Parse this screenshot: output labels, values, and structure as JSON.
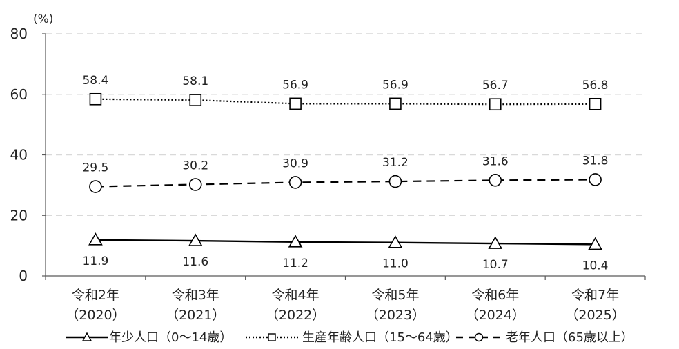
{
  "chart_data": {
    "type": "line",
    "title": "",
    "xlabel": "",
    "ylabel": "(%)",
    "ylim": [
      0,
      80
    ],
    "yticks": [
      0,
      20,
      40,
      60,
      80
    ],
    "grid": true,
    "legend_position": "bottom",
    "categories": [
      {
        "line1": "令和2年",
        "line2": "（2020）"
      },
      {
        "line1": "令和3年",
        "line2": "（2021）"
      },
      {
        "line1": "令和4年",
        "line2": "（2022）"
      },
      {
        "line1": "令和5年",
        "line2": "（2023）"
      },
      {
        "line1": "令和6年",
        "line2": "（2024）"
      },
      {
        "line1": "令和7年",
        "line2": "（2025）"
      }
    ],
    "series": [
      {
        "name": "年少人口（0～14歳）",
        "key": "youth",
        "marker": "triangle",
        "line_style": "solid",
        "values": [
          11.9,
          11.6,
          11.2,
          11.0,
          10.7,
          10.4
        ],
        "labels": [
          "11.9",
          "11.6",
          "11.2",
          "11.0",
          "10.7",
          "10.4"
        ],
        "label_position": "below"
      },
      {
        "name": "生産年齢人口（15～64歳）",
        "key": "working",
        "marker": "square",
        "line_style": "dotted",
        "values": [
          58.4,
          58.1,
          56.9,
          56.9,
          56.7,
          56.8
        ],
        "labels": [
          "58.4",
          "58.1",
          "56.9",
          "56.9",
          "56.7",
          "56.8"
        ],
        "label_position": "above"
      },
      {
        "name": "老年人口（65歳以上）",
        "key": "elderly",
        "marker": "circle",
        "line_style": "dashed",
        "values": [
          29.5,
          30.2,
          30.9,
          31.2,
          31.6,
          31.8
        ],
        "labels": [
          "29.5",
          "30.2",
          "30.9",
          "31.2",
          "31.6",
          "31.8"
        ],
        "label_position": "above"
      }
    ],
    "colors": {
      "line": "#000000",
      "grid": "#d9d9d9",
      "axis": "#595959",
      "marker_fill": "#ffffff"
    }
  }
}
